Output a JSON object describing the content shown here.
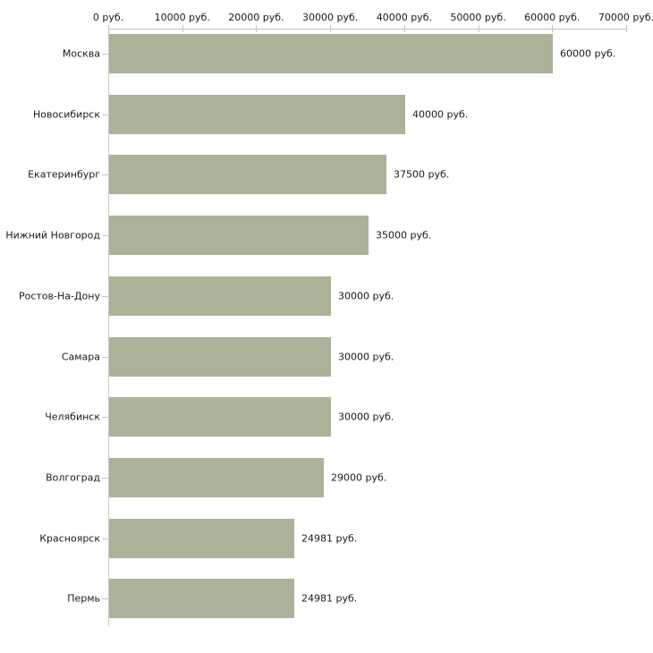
{
  "chart_data": {
    "type": "bar",
    "orientation": "horizontal",
    "title": "",
    "unit": "руб.",
    "categories": [
      "Москва",
      "Новосибирск",
      "Екатеринбург",
      "Нижний Новгород",
      "Ростов-На-Дону",
      "Самара",
      "Челябинск",
      "Волгоград",
      "Красноярск",
      "Пермь"
    ],
    "values": [
      60000,
      40000,
      37500,
      35000,
      30000,
      30000,
      30000,
      29000,
      24981,
      24981
    ],
    "value_labels": [
      "60000 руб.",
      "40000 руб.",
      "37500 руб.",
      "35000 руб.",
      "30000 руб.",
      "30000 руб.",
      "30000 руб.",
      "29000 руб.",
      "24981 руб.",
      "24981 руб."
    ],
    "x_tick_values": [
      0,
      10000,
      20000,
      30000,
      40000,
      50000,
      60000,
      70000
    ],
    "x_tick_labels": [
      "0 руб.",
      "10000 руб.",
      "20000 руб.",
      "30000 руб.",
      "40000 руб.",
      "50000 руб.",
      "60000 руб.",
      "70000 руб."
    ],
    "xlim": [
      0,
      70000
    ],
    "grid": false,
    "legend": false,
    "axis_position": "top",
    "colors": {
      "bar": "#abb29a",
      "axis_line": "#c2c2c2",
      "baseline": "#c9c9c9",
      "tick": "#c9c9a2",
      "text": "#1a1a1a",
      "background": "#ffffff"
    }
  }
}
